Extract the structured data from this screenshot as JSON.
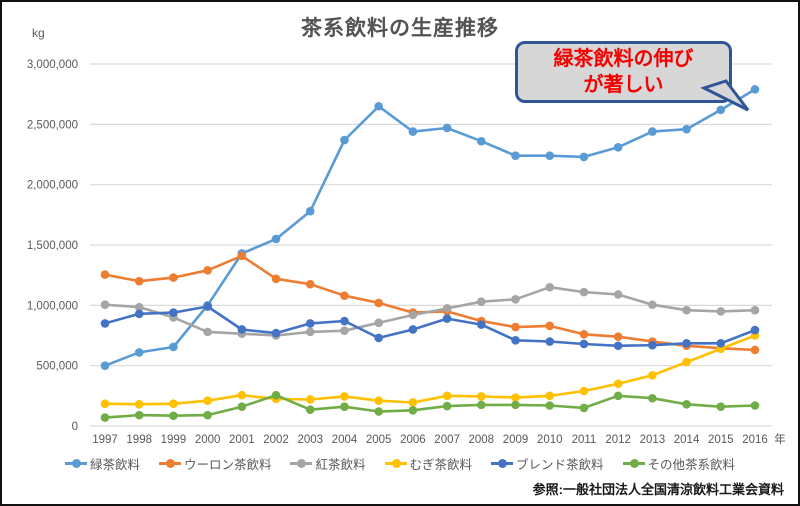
{
  "title": "茶系飲料の生産推移",
  "y_unit_label": "kg",
  "x_suffix_label": "年",
  "source_note": "参照:一般社団法人全国清涼飲料工業会資料",
  "callout": {
    "line1": "緑茶飲料の伸び",
    "line2": "が著しい",
    "text_color": "#f40000",
    "fill_color": "#d7d7d7",
    "border_color": "#2f5597"
  },
  "colors": {
    "gridline": "#d9d9d9",
    "axis_text": "#595959",
    "title_text": "#535353"
  },
  "chart_data": {
    "type": "line",
    "title": "茶系飲料の生産推移",
    "xlabel": "年",
    "ylabel": "kg",
    "ylim": [
      0,
      3000000
    ],
    "y_tick_step": 500000,
    "grid": true,
    "legend_position": "bottom",
    "x": [
      1997,
      1998,
      1999,
      2000,
      2001,
      2002,
      2003,
      2004,
      2005,
      2006,
      2007,
      2008,
      2009,
      2010,
      2011,
      2012,
      2013,
      2014,
      2015,
      2016
    ],
    "series": [
      {
        "id": "green-tea",
        "name": "緑茶飲料",
        "color": "#5b9bd5",
        "values": [
          500000,
          610000,
          655000,
          1000000,
          1430000,
          1550000,
          1780000,
          2370000,
          2650000,
          2440000,
          2470000,
          2360000,
          2240000,
          2240000,
          2230000,
          2310000,
          2440000,
          2460000,
          2620000,
          2790000
        ]
      },
      {
        "id": "oolong-tea",
        "name": "ウーロン茶飲料",
        "color": "#ed7d31",
        "values": [
          1255000,
          1200000,
          1230000,
          1290000,
          1410000,
          1220000,
          1175000,
          1080000,
          1020000,
          940000,
          950000,
          870000,
          820000,
          830000,
          760000,
          740000,
          700000,
          665000,
          645000,
          630000
        ]
      },
      {
        "id": "black-tea",
        "name": "紅茶飲料",
        "color": "#a5a5a5",
        "values": [
          1005000,
          985000,
          900000,
          780000,
          765000,
          750000,
          780000,
          790000,
          855000,
          920000,
          975000,
          1030000,
          1050000,
          1150000,
          1110000,
          1090000,
          1005000,
          960000,
          950000,
          960000
        ]
      },
      {
        "id": "barley-tea",
        "name": "むぎ茶飲料",
        "color": "#ffc000",
        "values": [
          185000,
          180000,
          185000,
          210000,
          255000,
          225000,
          220000,
          245000,
          210000,
          195000,
          250000,
          245000,
          235000,
          250000,
          290000,
          350000,
          420000,
          530000,
          640000,
          750000
        ]
      },
      {
        "id": "blend-tea",
        "name": "ブレンド茶飲料",
        "color": "#4472c4",
        "values": [
          850000,
          930000,
          940000,
          990000,
          800000,
          770000,
          850000,
          870000,
          730000,
          800000,
          890000,
          840000,
          710000,
          700000,
          680000,
          665000,
          670000,
          685000,
          685000,
          795000
        ]
      },
      {
        "id": "other-tea",
        "name": "その他茶系飲料",
        "color": "#70ad47",
        "values": [
          70000,
          90000,
          85000,
          90000,
          160000,
          255000,
          135000,
          160000,
          120000,
          130000,
          165000,
          175000,
          175000,
          170000,
          150000,
          250000,
          230000,
          180000,
          160000,
          170000
        ]
      }
    ]
  }
}
